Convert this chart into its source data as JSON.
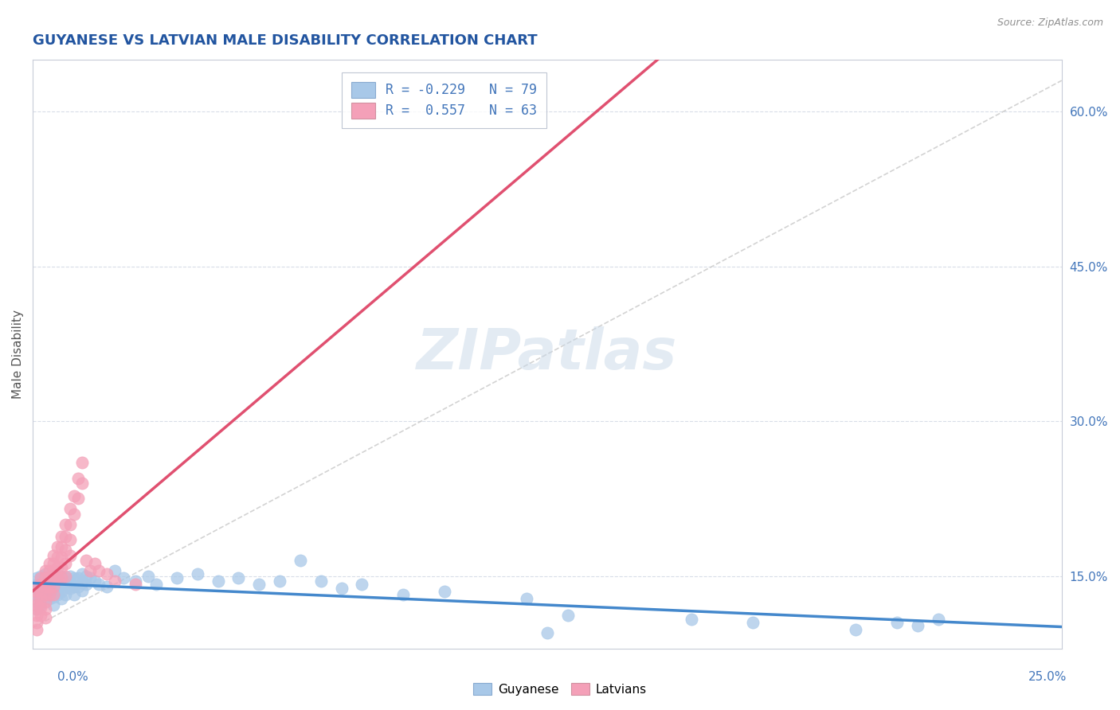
{
  "title": "GUYANESE VS LATVIAN MALE DISABILITY CORRELATION CHART",
  "source": "Source: ZipAtlas.com",
  "ylabel": "Male Disability",
  "y_ticks": [
    0.15,
    0.3,
    0.45,
    0.6
  ],
  "y_tick_labels": [
    "15.0%",
    "30.0%",
    "45.0%",
    "60.0%"
  ],
  "x_min": 0.0,
  "x_max": 0.25,
  "y_min": 0.08,
  "y_max": 0.65,
  "R_guyanese": -0.229,
  "N_guyanese": 79,
  "R_latvians": 0.557,
  "N_latvians": 63,
  "color_guyanese": "#a8c8e8",
  "color_latvians": "#f4a0b8",
  "trend_color_guyanese": "#4488cc",
  "trend_color_latvians": "#e05070",
  "trend_color_dashed": "#c8c8c8",
  "title_color": "#2255a0",
  "source_color": "#909090",
  "axis_label_color": "#4477bb",
  "tick_label_color": "#4477bb",
  "background_color": "#ffffff",
  "watermark": "ZIPatlas",
  "watermark_color": "#c8d8e8",
  "grid_color": "#d8dde8",
  "guyanese_scatter": [
    [
      0.001,
      0.148
    ],
    [
      0.001,
      0.142
    ],
    [
      0.001,
      0.138
    ],
    [
      0.001,
      0.132
    ],
    [
      0.001,
      0.125
    ],
    [
      0.001,
      0.118
    ],
    [
      0.002,
      0.15
    ],
    [
      0.002,
      0.145
    ],
    [
      0.002,
      0.14
    ],
    [
      0.002,
      0.135
    ],
    [
      0.002,
      0.128
    ],
    [
      0.002,
      0.122
    ],
    [
      0.003,
      0.152
    ],
    [
      0.003,
      0.148
    ],
    [
      0.003,
      0.142
    ],
    [
      0.003,
      0.138
    ],
    [
      0.003,
      0.13
    ],
    [
      0.004,
      0.148
    ],
    [
      0.004,
      0.142
    ],
    [
      0.004,
      0.135
    ],
    [
      0.004,
      0.128
    ],
    [
      0.005,
      0.15
    ],
    [
      0.005,
      0.144
    ],
    [
      0.005,
      0.138
    ],
    [
      0.005,
      0.13
    ],
    [
      0.005,
      0.122
    ],
    [
      0.006,
      0.148
    ],
    [
      0.006,
      0.14
    ],
    [
      0.006,
      0.132
    ],
    [
      0.007,
      0.15
    ],
    [
      0.007,
      0.142
    ],
    [
      0.007,
      0.135
    ],
    [
      0.007,
      0.128
    ],
    [
      0.008,
      0.148
    ],
    [
      0.008,
      0.14
    ],
    [
      0.008,
      0.132
    ],
    [
      0.009,
      0.15
    ],
    [
      0.009,
      0.144
    ],
    [
      0.009,
      0.138
    ],
    [
      0.01,
      0.148
    ],
    [
      0.01,
      0.14
    ],
    [
      0.01,
      0.132
    ],
    [
      0.011,
      0.148
    ],
    [
      0.011,
      0.14
    ],
    [
      0.012,
      0.152
    ],
    [
      0.012,
      0.144
    ],
    [
      0.012,
      0.136
    ],
    [
      0.013,
      0.15
    ],
    [
      0.013,
      0.142
    ],
    [
      0.014,
      0.148
    ],
    [
      0.015,
      0.145
    ],
    [
      0.016,
      0.142
    ],
    [
      0.018,
      0.14
    ],
    [
      0.02,
      0.155
    ],
    [
      0.022,
      0.148
    ],
    [
      0.025,
      0.145
    ],
    [
      0.028,
      0.15
    ],
    [
      0.03,
      0.142
    ],
    [
      0.035,
      0.148
    ],
    [
      0.04,
      0.152
    ],
    [
      0.045,
      0.145
    ],
    [
      0.05,
      0.148
    ],
    [
      0.055,
      0.142
    ],
    [
      0.06,
      0.145
    ],
    [
      0.065,
      0.165
    ],
    [
      0.07,
      0.145
    ],
    [
      0.075,
      0.138
    ],
    [
      0.08,
      0.142
    ],
    [
      0.09,
      0.132
    ],
    [
      0.1,
      0.135
    ],
    [
      0.12,
      0.128
    ],
    [
      0.125,
      0.095
    ],
    [
      0.13,
      0.112
    ],
    [
      0.16,
      0.108
    ],
    [
      0.175,
      0.105
    ],
    [
      0.2,
      0.098
    ],
    [
      0.21,
      0.105
    ],
    [
      0.215,
      0.102
    ],
    [
      0.22,
      0.108
    ]
  ],
  "latvians_scatter": [
    [
      0.001,
      0.14
    ],
    [
      0.001,
      0.135
    ],
    [
      0.001,
      0.128
    ],
    [
      0.001,
      0.122
    ],
    [
      0.001,
      0.118
    ],
    [
      0.001,
      0.112
    ],
    [
      0.001,
      0.105
    ],
    [
      0.001,
      0.098
    ],
    [
      0.002,
      0.148
    ],
    [
      0.002,
      0.142
    ],
    [
      0.002,
      0.135
    ],
    [
      0.002,
      0.128
    ],
    [
      0.002,
      0.12
    ],
    [
      0.002,
      0.112
    ],
    [
      0.003,
      0.155
    ],
    [
      0.003,
      0.148
    ],
    [
      0.003,
      0.14
    ],
    [
      0.003,
      0.132
    ],
    [
      0.003,
      0.125
    ],
    [
      0.003,
      0.118
    ],
    [
      0.003,
      0.11
    ],
    [
      0.004,
      0.162
    ],
    [
      0.004,
      0.155
    ],
    [
      0.004,
      0.148
    ],
    [
      0.004,
      0.14
    ],
    [
      0.004,
      0.132
    ],
    [
      0.005,
      0.17
    ],
    [
      0.005,
      0.162
    ],
    [
      0.005,
      0.155
    ],
    [
      0.005,
      0.148
    ],
    [
      0.005,
      0.14
    ],
    [
      0.005,
      0.132
    ],
    [
      0.006,
      0.178
    ],
    [
      0.006,
      0.168
    ],
    [
      0.006,
      0.158
    ],
    [
      0.006,
      0.148
    ],
    [
      0.007,
      0.188
    ],
    [
      0.007,
      0.178
    ],
    [
      0.007,
      0.168
    ],
    [
      0.007,
      0.158
    ],
    [
      0.007,
      0.148
    ],
    [
      0.008,
      0.2
    ],
    [
      0.008,
      0.188
    ],
    [
      0.008,
      0.175
    ],
    [
      0.008,
      0.162
    ],
    [
      0.008,
      0.15
    ],
    [
      0.009,
      0.215
    ],
    [
      0.009,
      0.2
    ],
    [
      0.009,
      0.185
    ],
    [
      0.009,
      0.17
    ],
    [
      0.01,
      0.228
    ],
    [
      0.01,
      0.21
    ],
    [
      0.011,
      0.245
    ],
    [
      0.011,
      0.225
    ],
    [
      0.012,
      0.26
    ],
    [
      0.012,
      0.24
    ],
    [
      0.013,
      0.165
    ],
    [
      0.014,
      0.155
    ],
    [
      0.015,
      0.162
    ],
    [
      0.016,
      0.155
    ],
    [
      0.018,
      0.152
    ],
    [
      0.02,
      0.145
    ],
    [
      0.025,
      0.142
    ]
  ]
}
